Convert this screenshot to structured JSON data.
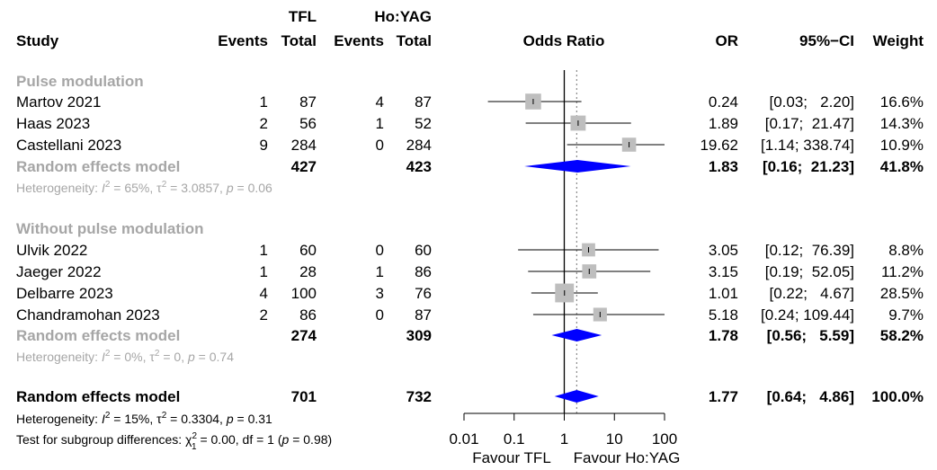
{
  "header": {
    "tfl_group": "TFL",
    "ho_group": "Ho:YAG",
    "study": "Study",
    "events": "Events",
    "total": "Total",
    "odds_ratio": "Odds Ratio",
    "or": "OR",
    "ci": "95%−CI",
    "weight": "Weight"
  },
  "chart_data": {
    "type": "forest",
    "xlabel": "",
    "x_scale": "log",
    "xlim": [
      0.01,
      100
    ],
    "ticks": [
      "0.01",
      "0.1",
      "1",
      "10",
      "100"
    ],
    "null_value": 1,
    "overall_or": 1.77,
    "favour_left": "Favour TFL",
    "favour_right": "Favour Ho:YAG",
    "subgroups": [
      {
        "label": "Pulse modulation",
        "studies": [
          {
            "study": "Martov 2021",
            "tfl_events": "1",
            "tfl_total": "87",
            "ho_events": "4",
            "ho_total": "87",
            "or": 0.24,
            "lo": 0.03,
            "hi": 2.2,
            "weight": 16.6,
            "or_text": "0.24",
            "ci_text": "[0.03;   2.20]",
            "weight_text": "16.6%"
          },
          {
            "study": "Haas 2023",
            "tfl_events": "2",
            "tfl_total": "56",
            "ho_events": "1",
            "ho_total": "52",
            "or": 1.89,
            "lo": 0.17,
            "hi": 21.47,
            "weight": 14.3,
            "or_text": "1.89",
            "ci_text": "[0.17;  21.47]",
            "weight_text": "14.3%"
          },
          {
            "study": "Castellani 2023",
            "tfl_events": "9",
            "tfl_total": "284",
            "ho_events": "0",
            "ho_total": "284",
            "or": 19.62,
            "lo": 1.14,
            "hi": 338.74,
            "weight": 10.9,
            "or_text": "19.62",
            "ci_text": "[1.14; 338.74]",
            "weight_text": "10.9%"
          }
        ],
        "model": {
          "label": "Random effects model",
          "tfl_total": "427",
          "ho_total": "423",
          "or": 1.83,
          "lo": 0.16,
          "hi": 21.23,
          "or_text": "1.83",
          "ci_text": "[0.16;  21.23]",
          "weight_text": "41.8%"
        },
        "heterogeneity": {
          "prefix": "Heterogeneity: ",
          "i2": " = 65%, ",
          "tau2": " = 3.0857, ",
          "p": " = 0.06"
        }
      },
      {
        "label": "Without pulse modulation",
        "studies": [
          {
            "study": "Ulvik 2022",
            "tfl_events": "1",
            "tfl_total": "60",
            "ho_events": "0",
            "ho_total": "60",
            "or": 3.05,
            "lo": 0.12,
            "hi": 76.39,
            "weight": 8.8,
            "or_text": "3.05",
            "ci_text": "[0.12;  76.39]",
            "weight_text": "8.8%"
          },
          {
            "study": "Jaeger 2022",
            "tfl_events": "1",
            "tfl_total": "28",
            "ho_events": "1",
            "ho_total": "86",
            "or": 3.15,
            "lo": 0.19,
            "hi": 52.05,
            "weight": 11.2,
            "or_text": "3.15",
            "ci_text": "[0.19;  52.05]",
            "weight_text": "11.2%"
          },
          {
            "study": "Delbarre 2023",
            "tfl_events": "4",
            "tfl_total": "100",
            "ho_events": "3",
            "ho_total": "76",
            "or": 1.01,
            "lo": 0.22,
            "hi": 4.67,
            "weight": 28.5,
            "or_text": "1.01",
            "ci_text": "[0.22;   4.67]",
            "weight_text": "28.5%"
          },
          {
            "study": "Chandramohan 2023",
            "tfl_events": "2",
            "tfl_total": "86",
            "ho_events": "0",
            "ho_total": "87",
            "or": 5.18,
            "lo": 0.24,
            "hi": 109.44,
            "weight": 9.7,
            "or_text": "5.18",
            "ci_text": "[0.24; 109.44]",
            "weight_text": "9.7%"
          }
        ],
        "model": {
          "label": "Random effects model",
          "tfl_total": "274",
          "ho_total": "309",
          "or": 1.78,
          "lo": 0.56,
          "hi": 5.59,
          "or_text": "1.78",
          "ci_text": "[0.56;   5.59]",
          "weight_text": "58.2%"
        },
        "heterogeneity": {
          "prefix": "Heterogeneity: ",
          "i2": " = 0%, ",
          "tau2": " = 0, ",
          "p": " = 0.74"
        }
      }
    ],
    "overall": {
      "label": "Random effects model",
      "tfl_total": "701",
      "ho_total": "732",
      "or": 1.77,
      "lo": 0.64,
      "hi": 4.86,
      "or_text": "1.77",
      "ci_text": "[0.64;   4.86]",
      "weight_text": "100.0%",
      "heterogeneity": {
        "prefix": "Heterogeneity: ",
        "i2": " = 15%, ",
        "tau2": " = 0.3304, ",
        "p": " = 0.31"
      },
      "subgroup_test": {
        "prefix": "Test for subgroup differences: ",
        "chi": " = 0.00, df = 1 (",
        "p": " = 0.98)"
      }
    }
  },
  "colors": {
    "diamond": "#0000ff",
    "box": "#bebebe",
    "grey_text": "#a6a6a6",
    "dotted": "#7f7f7f"
  }
}
